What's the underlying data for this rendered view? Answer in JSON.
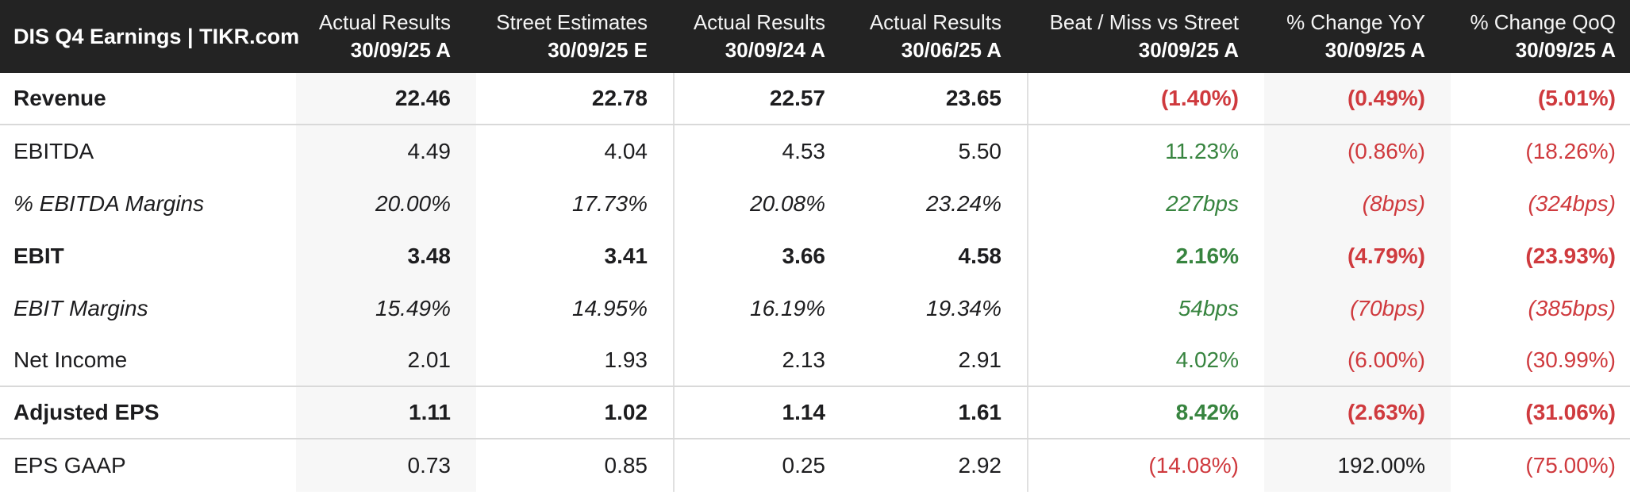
{
  "header": {
    "title": "DIS Q4 Earnings | TIKR.com",
    "columns": [
      {
        "line1": "Actual Results",
        "line2": "30/09/25 A"
      },
      {
        "line1": "Street Estimates",
        "line2": "30/09/25 E"
      },
      {
        "line1": "Actual Results",
        "line2": "30/09/24 A"
      },
      {
        "line1": "Actual Results",
        "line2": "30/06/25 A"
      },
      {
        "line1": "Beat / Miss vs Street",
        "line2": "30/09/25 A"
      },
      {
        "line1": "% Change YoY",
        "line2": "30/09/25 A"
      },
      {
        "line1": "% Change QoQ",
        "line2": "30/09/25 A"
      }
    ]
  },
  "rows": [
    {
      "label": "Revenue",
      "style": "bold",
      "values": [
        "22.46",
        "22.78",
        "22.57",
        "23.65"
      ],
      "beat": {
        "text": "(1.40%)",
        "color": "red"
      },
      "yoy": {
        "text": "(0.49%)",
        "color": "red"
      },
      "qoq": {
        "text": "(5.01%)",
        "color": "red"
      }
    },
    {
      "label": "EBITDA",
      "style": "normal",
      "values": [
        "4.49",
        "4.04",
        "4.53",
        "5.50"
      ],
      "beat": {
        "text": "11.23%",
        "color": "green"
      },
      "yoy": {
        "text": "(0.86%)",
        "color": "red"
      },
      "qoq": {
        "text": "(18.26%)",
        "color": "red"
      }
    },
    {
      "label": "% EBITDA Margins",
      "style": "italic",
      "values": [
        "20.00%",
        "17.73%",
        "20.08%",
        "23.24%"
      ],
      "beat": {
        "text": "227bps",
        "color": "green"
      },
      "yoy": {
        "text": "(8bps)",
        "color": "red"
      },
      "qoq": {
        "text": "(324bps)",
        "color": "red"
      }
    },
    {
      "label": "EBIT",
      "style": "bold",
      "values": [
        "3.48",
        "3.41",
        "3.66",
        "4.58"
      ],
      "beat": {
        "text": "2.16%",
        "color": "green"
      },
      "yoy": {
        "text": "(4.79%)",
        "color": "red"
      },
      "qoq": {
        "text": "(23.93%)",
        "color": "red"
      }
    },
    {
      "label": "EBIT Margins",
      "style": "italic",
      "values": [
        "15.49%",
        "14.95%",
        "16.19%",
        "19.34%"
      ],
      "beat": {
        "text": "54bps",
        "color": "green"
      },
      "yoy": {
        "text": "(70bps)",
        "color": "red"
      },
      "qoq": {
        "text": "(385bps)",
        "color": "red"
      }
    },
    {
      "label": "Net Income",
      "style": "normal",
      "values": [
        "2.01",
        "1.93",
        "2.13",
        "2.91"
      ],
      "beat": {
        "text": "4.02%",
        "color": "green"
      },
      "yoy": {
        "text": "(6.00%)",
        "color": "red"
      },
      "qoq": {
        "text": "(30.99%)",
        "color": "red"
      }
    },
    {
      "label": "Adjusted EPS",
      "style": "bold",
      "values": [
        "1.11",
        "1.02",
        "1.14",
        "1.61"
      ],
      "beat": {
        "text": "8.42%",
        "color": "green"
      },
      "yoy": {
        "text": "(2.63%)",
        "color": "red"
      },
      "qoq": {
        "text": "(31.06%)",
        "color": "red"
      }
    },
    {
      "label": "EPS GAAP",
      "style": "normal",
      "values": [
        "0.73",
        "0.85",
        "0.25",
        "2.92"
      ],
      "beat": {
        "text": "(14.08%)",
        "color": "red"
      },
      "yoy": {
        "text": "192.00%",
        "color": "dark"
      },
      "qoq": {
        "text": "(75.00%)",
        "color": "red"
      }
    }
  ],
  "colors": {
    "header_bg": "#232323",
    "header_text": "#ffffff",
    "body_text": "#1d1d1f",
    "negative": "#cf3a3e",
    "positive": "#37843f",
    "column_highlight": "#f7f7f7",
    "divider": "#d9d9d9"
  }
}
